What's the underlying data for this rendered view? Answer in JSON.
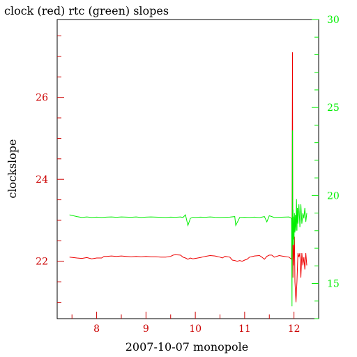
{
  "chart_data": {
    "type": "line",
    "title": "clock (red) rtc (green) slopes",
    "xlabel": "2007-10-07 monopole",
    "ylabel": "clockslope",
    "x_ticks": [
      8,
      9,
      10,
      11,
      12
    ],
    "xlim": [
      7.2,
      12.5
    ],
    "grid": false,
    "colors": {
      "red": "#ee0000",
      "green": "#00ee00",
      "frame": "#000000"
    },
    "left_axis": {
      "ylim": [
        20.6,
        27.9
      ],
      "ticks": [
        22,
        24,
        26
      ],
      "color": "#cc0000"
    },
    "right_axis": {
      "ylim": [
        13,
        30
      ],
      "ticks": [
        15,
        20,
        25,
        30
      ],
      "color": "#00ee00"
    },
    "series": [
      {
        "name": "clock",
        "color": "red",
        "axis": "left",
        "x": [
          7.45,
          7.6,
          7.7,
          7.8,
          7.9,
          8.0,
          8.1,
          8.15,
          8.2,
          8.3,
          8.4,
          8.5,
          8.6,
          8.7,
          8.8,
          8.9,
          9.0,
          9.1,
          9.2,
          9.3,
          9.4,
          9.5,
          9.55,
          9.6,
          9.7,
          9.75,
          9.8,
          9.85,
          9.9,
          9.95,
          10.0,
          10.1,
          10.2,
          10.3,
          10.4,
          10.5,
          10.55,
          10.6,
          10.7,
          10.75,
          10.8,
          10.85,
          10.9,
          10.95,
          11.0,
          11.05,
          11.1,
          11.2,
          11.3,
          11.35,
          11.4,
          11.45,
          11.5,
          11.55,
          11.6,
          11.7,
          11.8,
          11.9,
          11.95,
          11.96,
          11.97,
          11.975,
          11.98,
          11.985,
          11.99,
          12.0,
          12.01,
          12.02,
          12.04,
          12.06,
          12.08,
          12.1,
          12.12,
          12.14,
          12.16,
          12.18,
          12.2,
          12.22,
          12.24,
          12.26
        ],
        "y": [
          22.1,
          22.08,
          22.07,
          22.09,
          22.06,
          22.08,
          22.08,
          22.12,
          22.12,
          22.13,
          22.12,
          22.13,
          22.12,
          22.11,
          22.12,
          22.11,
          22.12,
          22.11,
          22.11,
          22.1,
          22.1,
          22.12,
          22.15,
          22.16,
          22.15,
          22.1,
          22.08,
          22.05,
          22.08,
          22.06,
          22.07,
          22.09,
          22.12,
          22.14,
          22.13,
          22.1,
          22.08,
          22.12,
          22.1,
          22.03,
          22.02,
          22.0,
          22.02,
          22.0,
          22.03,
          22.05,
          22.1,
          22.13,
          22.14,
          22.1,
          22.05,
          22.12,
          22.15,
          22.15,
          22.1,
          22.14,
          22.12,
          22.1,
          22.05,
          22.9,
          27.1,
          23.0,
          21.6,
          22.4,
          21.9,
          22.2,
          22.6,
          21.5,
          21.0,
          21.5,
          22.2,
          22.1,
          22.2,
          21.6,
          22.2,
          21.9,
          22.1,
          21.8,
          22.2,
          21.9
        ]
      },
      {
        "name": "rtc",
        "color": "green",
        "axis": "right",
        "x": [
          7.45,
          7.6,
          7.7,
          7.8,
          7.9,
          8.0,
          8.1,
          8.2,
          8.3,
          8.4,
          8.5,
          8.6,
          8.7,
          8.8,
          8.9,
          9.0,
          9.1,
          9.2,
          9.3,
          9.4,
          9.5,
          9.6,
          9.7,
          9.75,
          9.8,
          9.85,
          9.9,
          9.95,
          10.0,
          10.1,
          10.2,
          10.3,
          10.4,
          10.5,
          10.6,
          10.7,
          10.8,
          10.82,
          10.9,
          11.0,
          11.1,
          11.2,
          11.3,
          11.4,
          11.45,
          11.5,
          11.6,
          11.7,
          11.8,
          11.9,
          11.95,
          11.96,
          11.97,
          11.975,
          11.98,
          11.985,
          11.99,
          12.0,
          12.01,
          12.02,
          12.03,
          12.04,
          12.05,
          12.06,
          12.07,
          12.08,
          12.1,
          12.12,
          12.14,
          12.16,
          12.18,
          12.2,
          12.22,
          12.24,
          12.26
        ],
        "y": [
          18.9,
          18.8,
          18.75,
          18.78,
          18.75,
          18.77,
          18.75,
          18.77,
          18.78,
          18.76,
          18.78,
          18.77,
          18.76,
          18.78,
          18.75,
          18.77,
          18.78,
          18.77,
          18.76,
          18.75,
          18.77,
          18.76,
          18.78,
          18.75,
          18.9,
          18.3,
          18.7,
          18.76,
          18.75,
          18.77,
          18.76,
          18.78,
          18.76,
          18.75,
          18.76,
          18.77,
          18.8,
          18.3,
          18.75,
          18.76,
          18.75,
          18.77,
          18.74,
          18.8,
          18.5,
          18.85,
          18.75,
          18.76,
          18.77,
          18.78,
          18.7,
          13.7,
          23.7,
          17.2,
          19.2,
          17.5,
          18.8,
          17.2,
          19.0,
          17.9,
          18.9,
          18.0,
          19.8,
          18.0,
          19.3,
          18.4,
          19.5,
          18.2,
          19.5,
          18.4,
          19.0,
          18.7,
          19.3,
          18.5,
          19.0
        ]
      }
    ]
  }
}
